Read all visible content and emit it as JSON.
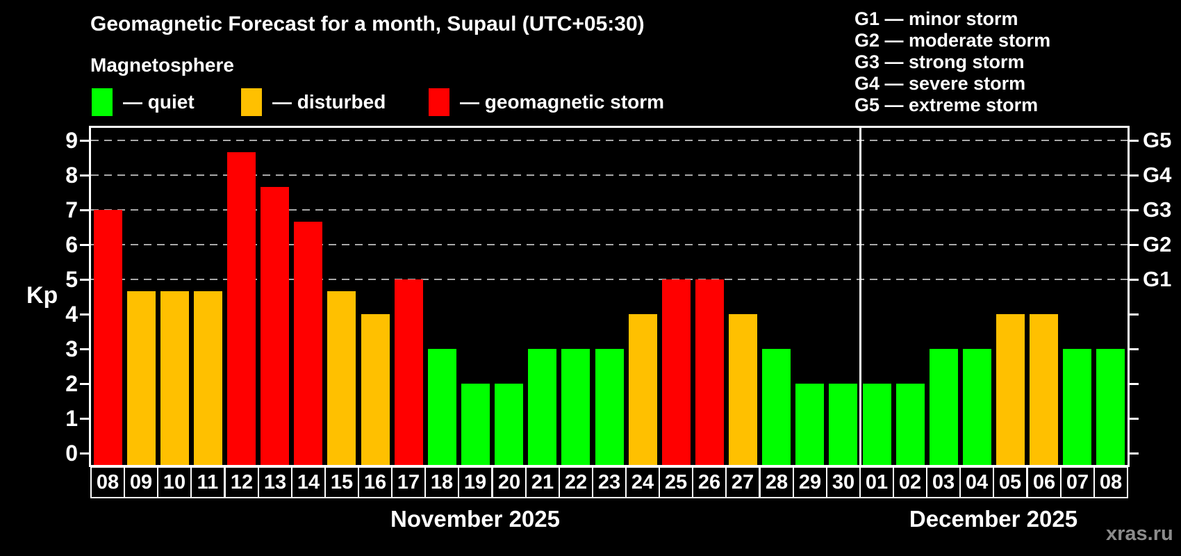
{
  "title": "Geomagnetic Forecast for a month, Supaul (UTC+05:30)",
  "magnetosphere_label": "Magnetosphere",
  "legend": {
    "quiet": {
      "label": "— quiet",
      "color": "#00ff00"
    },
    "disturbed": {
      "label": "— disturbed",
      "color": "#ffc000"
    },
    "storm": {
      "label": "— geomagnetic storm",
      "color": "#ff0000"
    }
  },
  "storm_scale": [
    "G1 — minor storm",
    "G2 — moderate storm",
    "G3 — strong storm",
    "G4 — severe storm",
    "G5 — extreme storm"
  ],
  "watermark": "xras.ru",
  "chart_data": {
    "type": "bar",
    "title": "Geomagnetic Forecast for a month, Supaul (UTC+05:30)",
    "ylabel": "Kp",
    "ylim": [
      0,
      9
    ],
    "yticks": [
      0,
      1,
      2,
      3,
      4,
      5,
      6,
      7,
      8,
      9
    ],
    "grid": "dashed horizontal lines at G-levels only",
    "g_levels": [
      {
        "kp": 5,
        "label": "G1"
      },
      {
        "kp": 6,
        "label": "G2"
      },
      {
        "kp": 7,
        "label": "G3"
      },
      {
        "kp": 8,
        "label": "G4"
      },
      {
        "kp": 9,
        "label": "G5"
      }
    ],
    "months": [
      {
        "label": "November 2025",
        "start": 0,
        "count": 23
      },
      {
        "label": "December 2025",
        "start": 23,
        "count": 8
      }
    ],
    "bars": [
      {
        "day": "08",
        "kp": 7.0,
        "state": "storm"
      },
      {
        "day": "09",
        "kp": 4.67,
        "state": "disturbed"
      },
      {
        "day": "10",
        "kp": 4.67,
        "state": "disturbed"
      },
      {
        "day": "11",
        "kp": 4.67,
        "state": "disturbed"
      },
      {
        "day": "12",
        "kp": 8.67,
        "state": "storm"
      },
      {
        "day": "13",
        "kp": 7.67,
        "state": "storm"
      },
      {
        "day": "14",
        "kp": 6.67,
        "state": "storm"
      },
      {
        "day": "15",
        "kp": 4.67,
        "state": "disturbed"
      },
      {
        "day": "16",
        "kp": 4.0,
        "state": "disturbed"
      },
      {
        "day": "17",
        "kp": 5.0,
        "state": "storm"
      },
      {
        "day": "18",
        "kp": 3.0,
        "state": "quiet"
      },
      {
        "day": "19",
        "kp": 2.0,
        "state": "quiet"
      },
      {
        "day": "20",
        "kp": 2.0,
        "state": "quiet"
      },
      {
        "day": "21",
        "kp": 3.0,
        "state": "quiet"
      },
      {
        "day": "22",
        "kp": 3.0,
        "state": "quiet"
      },
      {
        "day": "23",
        "kp": 3.0,
        "state": "quiet"
      },
      {
        "day": "24",
        "kp": 4.0,
        "state": "disturbed"
      },
      {
        "day": "25",
        "kp": 5.0,
        "state": "storm"
      },
      {
        "day": "26",
        "kp": 5.0,
        "state": "storm"
      },
      {
        "day": "27",
        "kp": 4.0,
        "state": "disturbed"
      },
      {
        "day": "28",
        "kp": 3.0,
        "state": "quiet"
      },
      {
        "day": "29",
        "kp": 2.0,
        "state": "quiet"
      },
      {
        "day": "30",
        "kp": 2.0,
        "state": "quiet"
      },
      {
        "day": "01",
        "kp": 2.0,
        "state": "quiet"
      },
      {
        "day": "02",
        "kp": 2.0,
        "state": "quiet"
      },
      {
        "day": "03",
        "kp": 3.0,
        "state": "quiet"
      },
      {
        "day": "04",
        "kp": 3.0,
        "state": "quiet"
      },
      {
        "day": "05",
        "kp": 4.0,
        "state": "disturbed"
      },
      {
        "day": "06",
        "kp": 4.0,
        "state": "disturbed"
      },
      {
        "day": "07",
        "kp": 3.0,
        "state": "quiet"
      },
      {
        "day": "08",
        "kp": 3.0,
        "state": "quiet"
      }
    ]
  }
}
